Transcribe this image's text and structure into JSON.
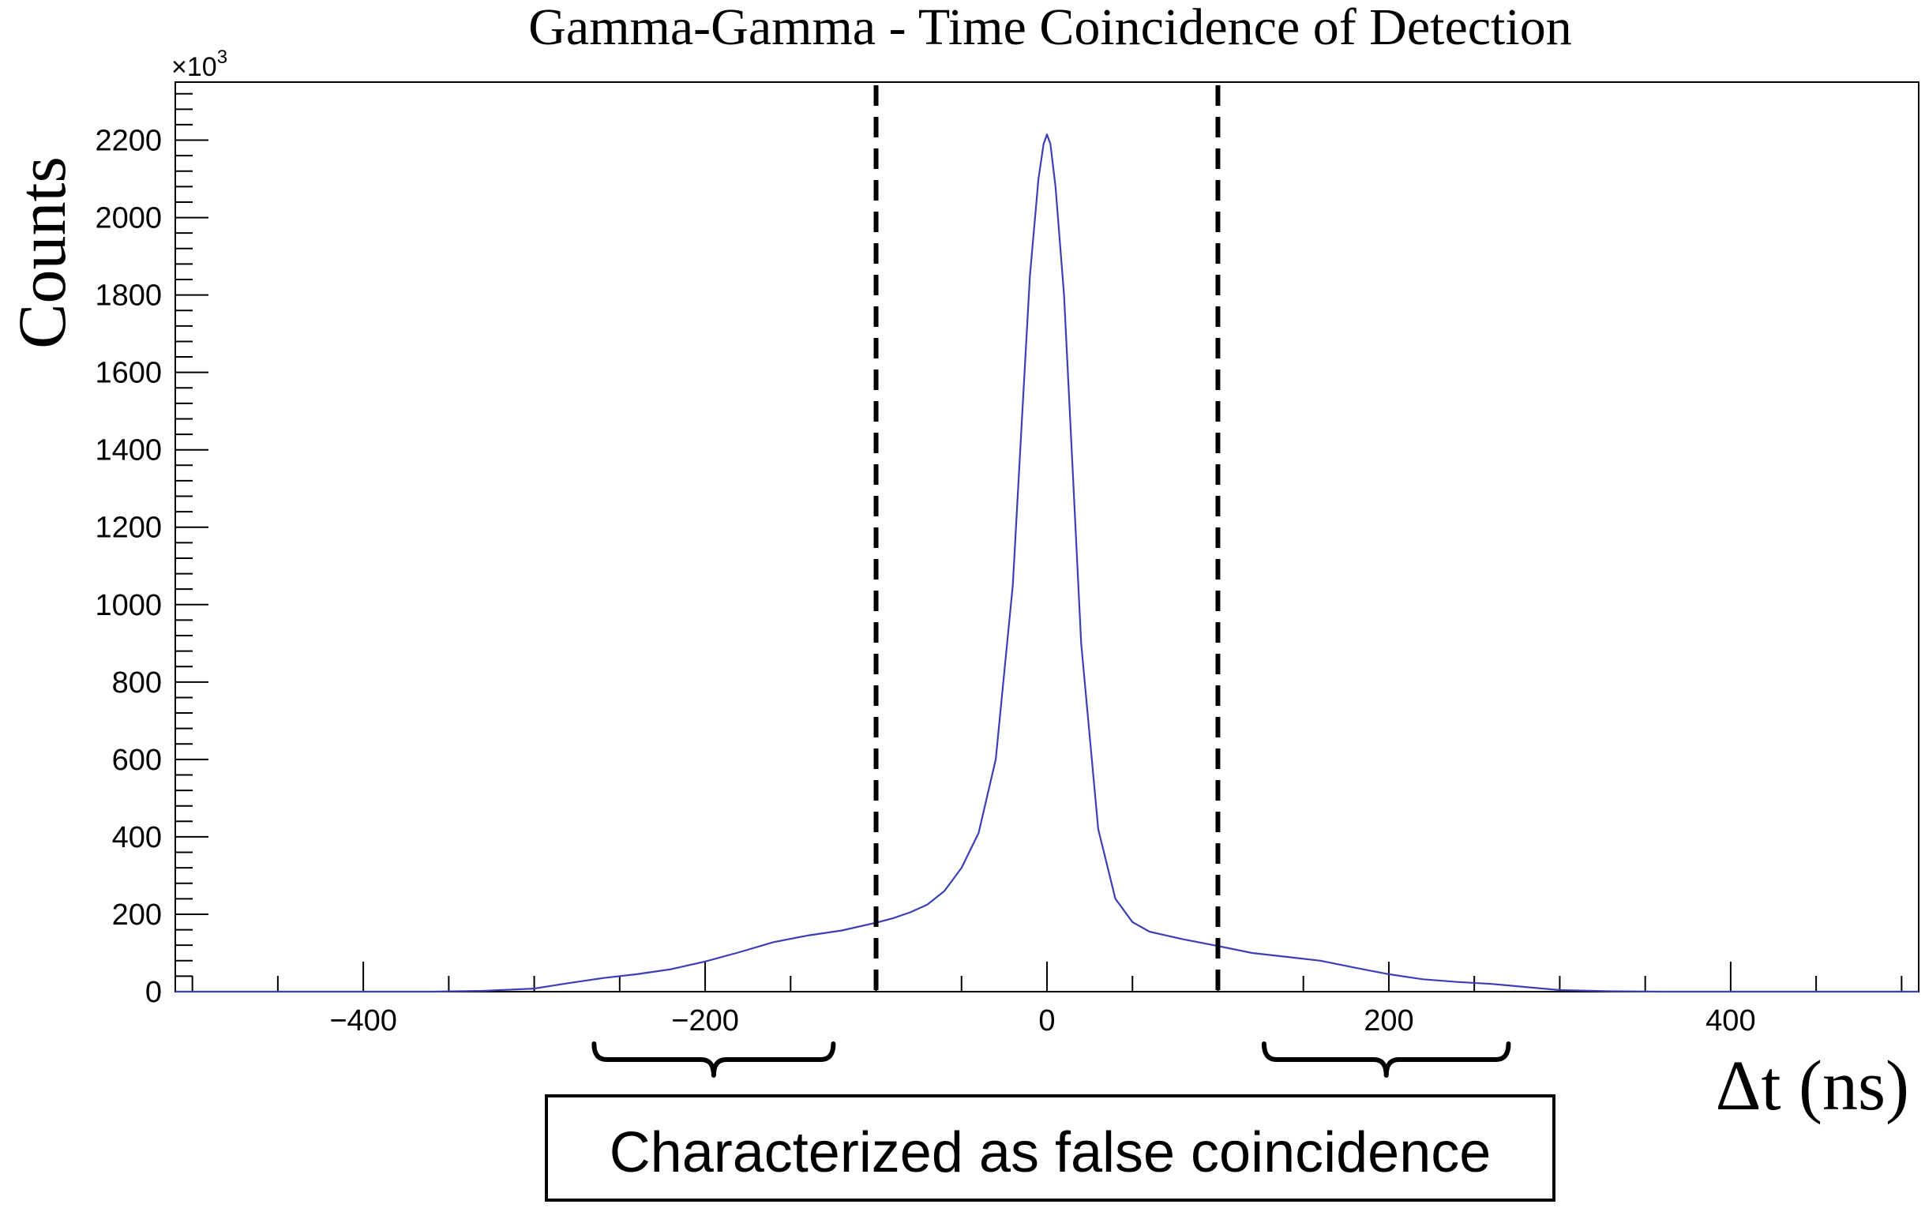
{
  "chart_data": {
    "type": "line",
    "title": "Gamma-Gamma - Time Coincidence of Detection",
    "xlabel": "Δt (ns)",
    "ylabel": "Counts",
    "y_multiplier": "×10",
    "y_multiplier_exp": "3",
    "xlim": [
      -510,
      510
    ],
    "ylim": [
      0,
      2350
    ],
    "x_ticks": [
      -400,
      -200,
      0,
      200,
      400
    ],
    "y_ticks": [
      0,
      200,
      400,
      600,
      800,
      1000,
      1200,
      1400,
      1600,
      1800,
      2000,
      2200
    ],
    "x_tick_labels": [
      "−400",
      "−200",
      "0",
      "200",
      "400"
    ],
    "y_tick_labels": [
      "0",
      "200",
      "400",
      "600",
      "800",
      "1000",
      "1200",
      "1400",
      "1600",
      "1800",
      "2000",
      "2200"
    ],
    "grid": false,
    "series": [
      {
        "color": "#3b3fb5",
        "x": [
          -510,
          -360,
          -330,
          -300,
          -280,
          -260,
          -240,
          -220,
          -200,
          -180,
          -160,
          -140,
          -120,
          -100,
          -90,
          -80,
          -70,
          -60,
          -50,
          -40,
          -30,
          -20,
          -15,
          -10,
          -5,
          -2,
          0,
          2,
          5,
          10,
          15,
          20,
          30,
          40,
          50,
          60,
          70,
          80,
          100,
          120,
          140,
          160,
          180,
          200,
          220,
          240,
          260,
          280,
          300,
          330,
          360,
          510
        ],
        "y": [
          0,
          0,
          2,
          8,
          22,
          35,
          45,
          58,
          78,
          102,
          128,
          145,
          158,
          178,
          190,
          205,
          225,
          260,
          320,
          410,
          600,
          1050,
          1450,
          1850,
          2100,
          2190,
          2215,
          2190,
          2080,
          1800,
          1350,
          900,
          420,
          240,
          180,
          155,
          145,
          135,
          118,
          100,
          90,
          80,
          62,
          45,
          32,
          25,
          20,
          12,
          4,
          1,
          0,
          0
        ]
      }
    ],
    "markers": [
      {
        "type": "vline",
        "x": -100,
        "style": "dashed",
        "color": "#000000"
      },
      {
        "type": "vline",
        "x": 100,
        "style": "dashed",
        "color": "#000000"
      }
    ],
    "annotations": {
      "brace_left": {
        "x_range": [
          -265,
          -125
        ]
      },
      "brace_right": {
        "x_range": [
          127,
          270
        ]
      },
      "label": "Characterized as false coincidence"
    }
  }
}
